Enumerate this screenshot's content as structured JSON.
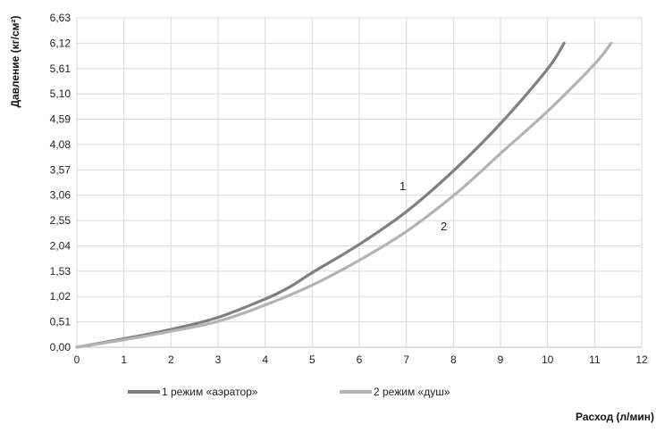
{
  "chart_data": {
    "type": "line",
    "xlabel": "Расход (л/мин)",
    "ylabel": "Давление (кг/см²)",
    "xlim": [
      0,
      12
    ],
    "ylim": [
      0,
      6.63
    ],
    "x_ticks": [
      "0",
      "1",
      "2",
      "3",
      "4",
      "5",
      "6",
      "7",
      "8",
      "9",
      "10",
      "11",
      "12"
    ],
    "y_ticks": [
      "0,00",
      "0,51",
      "1,02",
      "1,53",
      "2,04",
      "2,55",
      "3,06",
      "3,57",
      "4,08",
      "4,59",
      "5,10",
      "5,61",
      "6,12",
      "6,63"
    ],
    "grid": true,
    "legend_position": "bottom-left",
    "series": [
      {
        "name": "1 режим «аэратор»",
        "color": "#7f7f7f",
        "curve_label": "1",
        "x": [
          0,
          1,
          2,
          3,
          4,
          4.5,
          5,
          6,
          7,
          8,
          9,
          10,
          10.35
        ],
        "y": [
          0,
          0.17,
          0.36,
          0.6,
          0.97,
          1.2,
          1.5,
          2.07,
          2.73,
          3.55,
          4.5,
          5.6,
          6.12
        ]
      },
      {
        "name": "2 режим «душ»",
        "color": "#b3b3b3",
        "curve_label": "2",
        "x": [
          0,
          1,
          2,
          3,
          4,
          5,
          6,
          7,
          8,
          8.6,
          9,
          10,
          11,
          11.35
        ],
        "y": [
          0,
          0.15,
          0.32,
          0.52,
          0.85,
          1.25,
          1.75,
          2.33,
          3.05,
          3.55,
          3.9,
          4.75,
          5.7,
          6.12
        ]
      }
    ]
  }
}
